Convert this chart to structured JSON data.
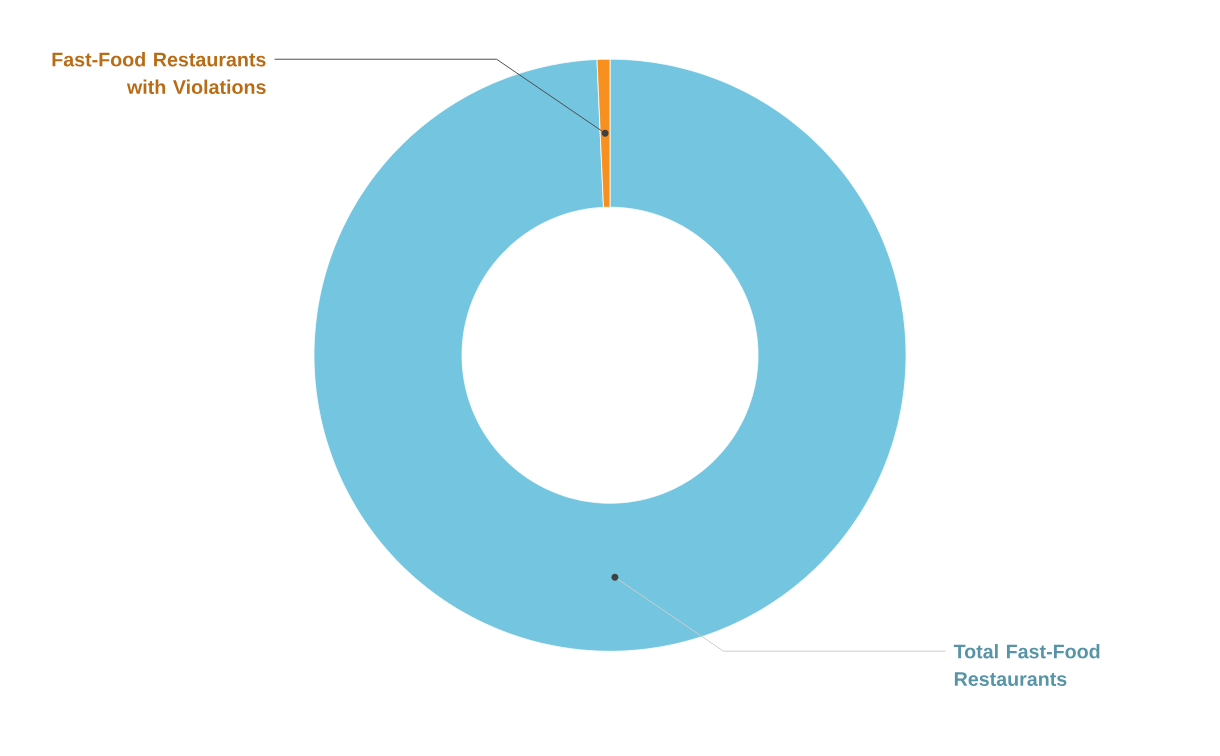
{
  "chart_data": {
    "type": "donut",
    "categories": [
      "Total Fast-Food Restaurants",
      "Fast-Food Restaurants with Violations"
    ],
    "values": [
      99.3,
      0.7
    ],
    "colors": [
      "#74c5df",
      "#f7901e"
    ]
  }
}
